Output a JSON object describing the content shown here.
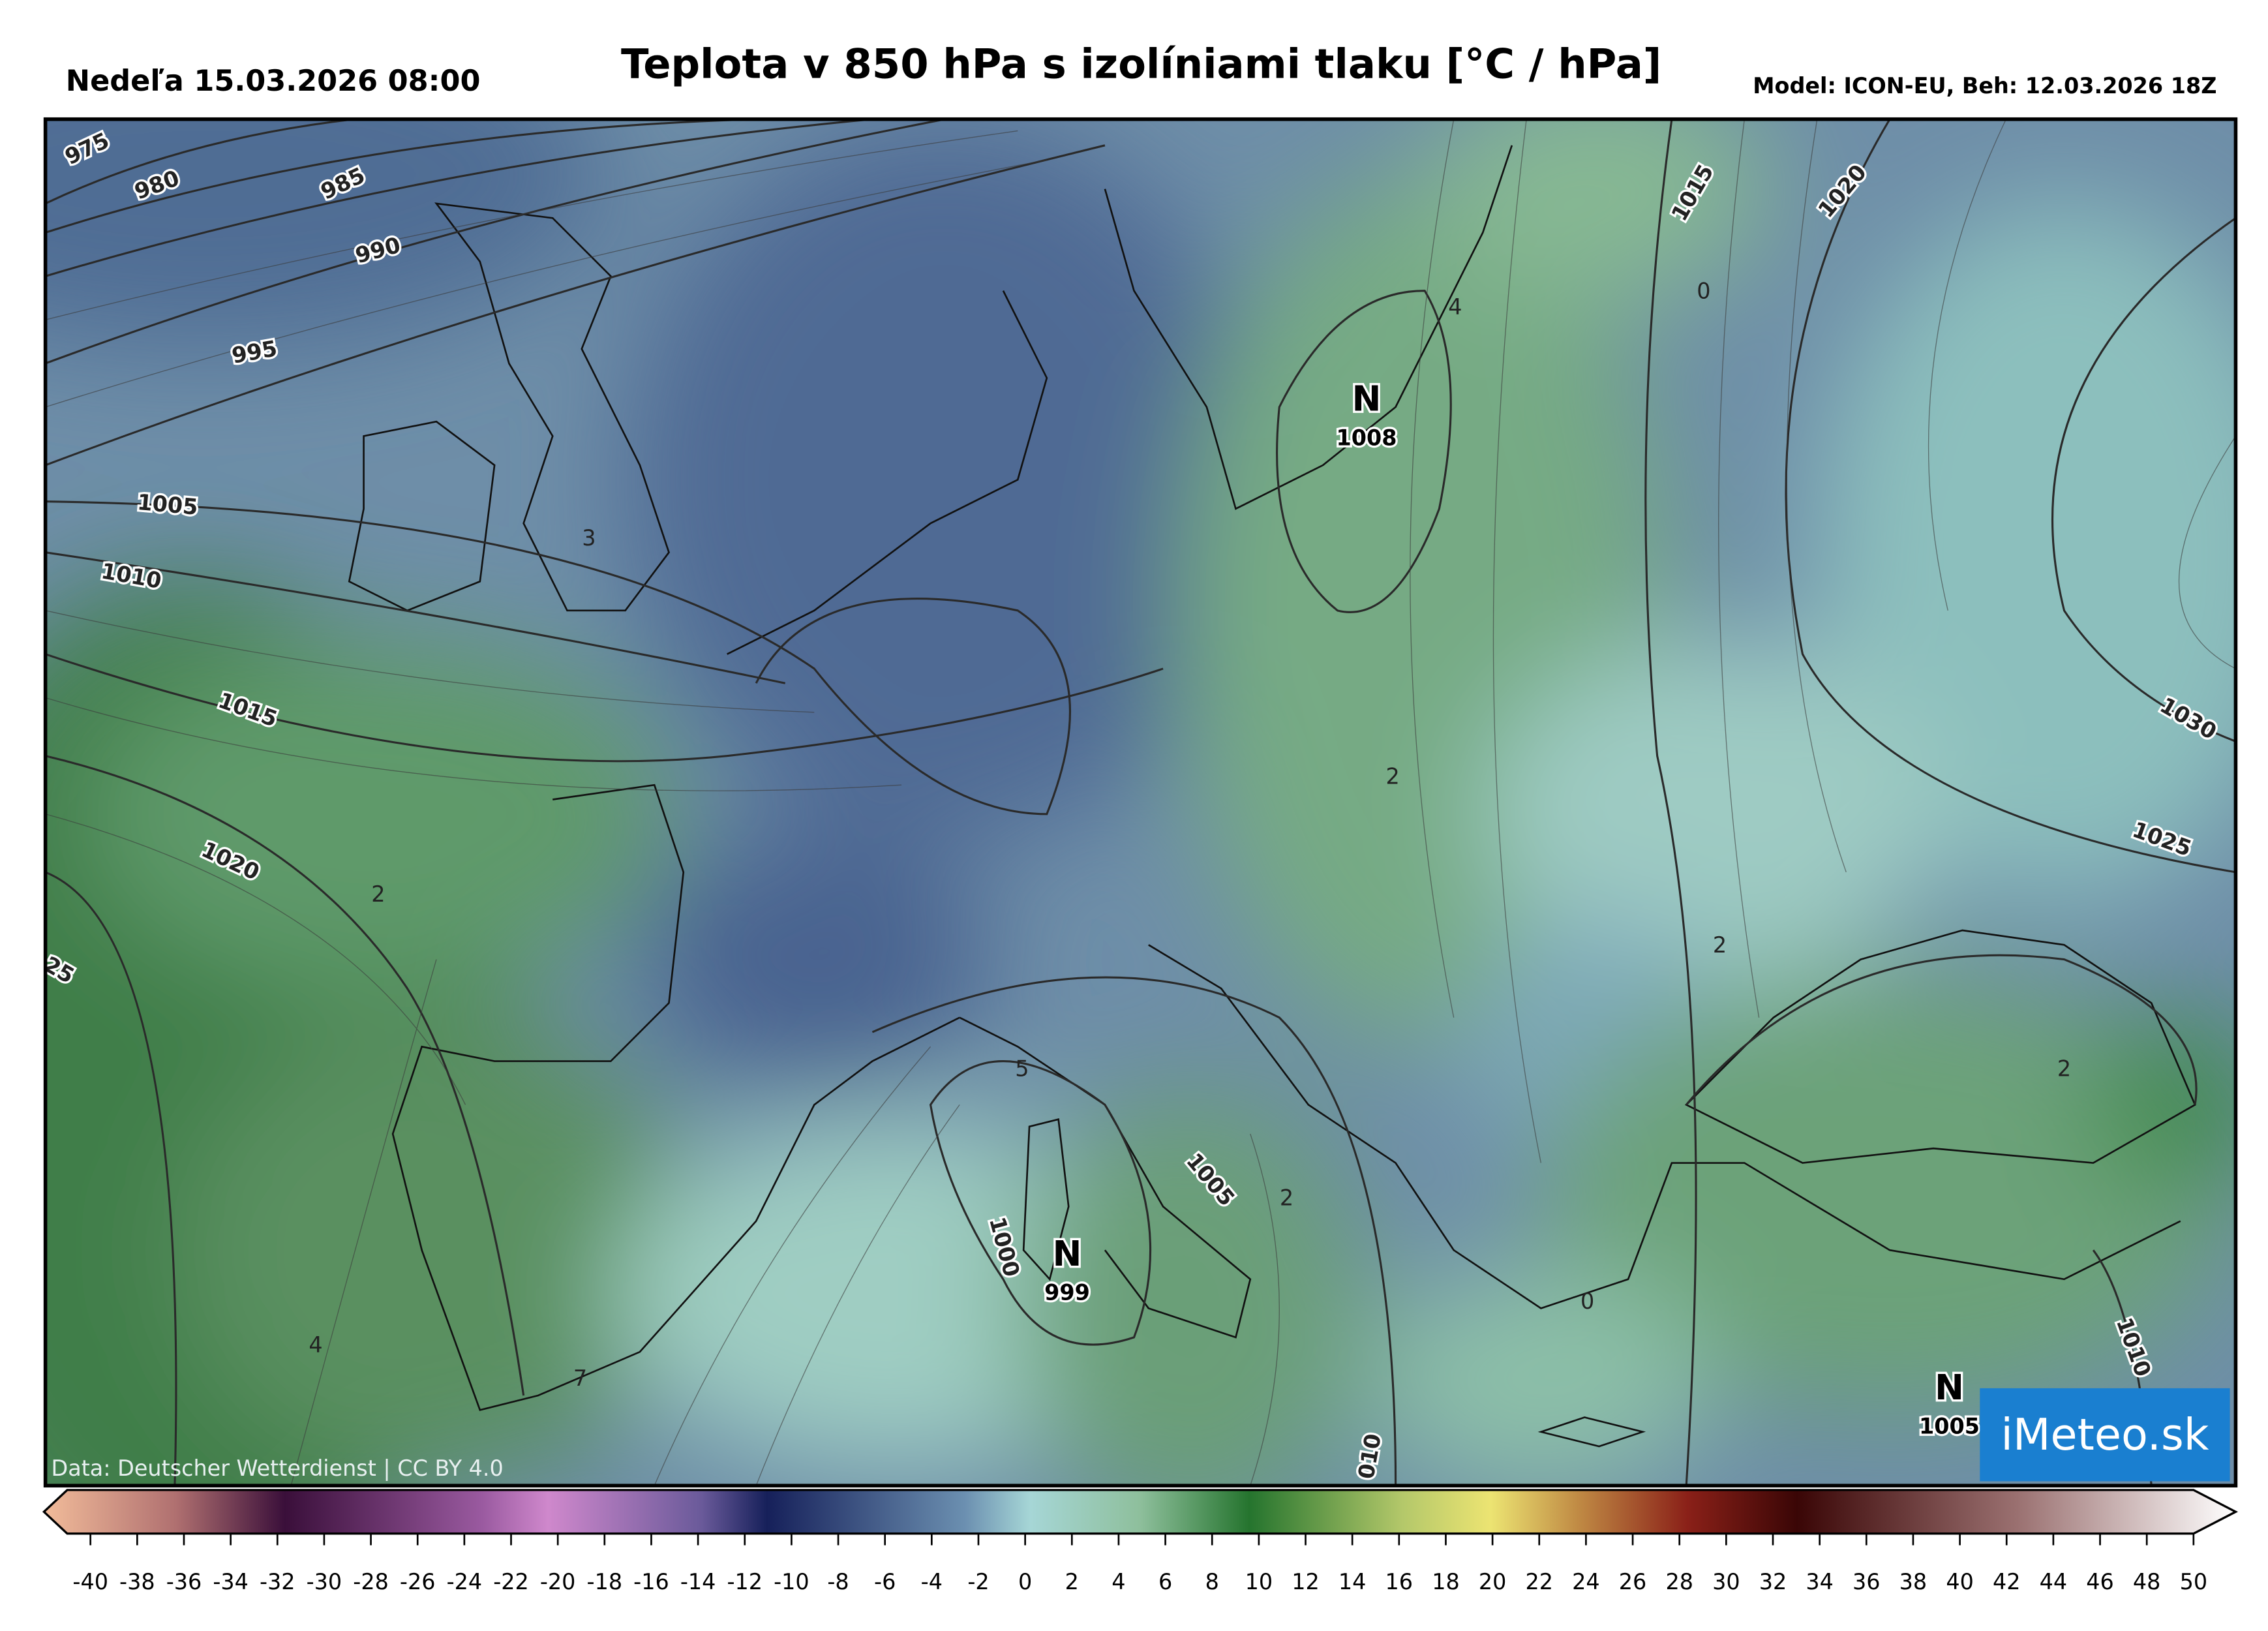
{
  "header": {
    "date": "Nedeľa 15.03.2026 08:00",
    "title": "Teplota v 850 hPa s izolíniami tlaku [°C / hPa]",
    "model": "Model: ICON-EU, Beh: 12.03.2026 18Z"
  },
  "map": {
    "isobar_labels": [
      "975",
      "980",
      "985",
      "990",
      "995",
      "1005",
      "1010",
      "1015",
      "1020",
      "25",
      "1015",
      "1020",
      "1030",
      "1025",
      "1005",
      "1000",
      "010",
      "1010"
    ],
    "temperature_labels": [
      "3",
      "2",
      "4",
      "7",
      "5",
      "4",
      "0",
      "2",
      "2",
      "2",
      "0",
      "2"
    ],
    "pressure_centers": [
      {
        "symbol": "N",
        "value": "1008"
      },
      {
        "symbol": "N",
        "value": "999"
      },
      {
        "symbol": "N",
        "value": "1005"
      }
    ],
    "credit": "Data: Deutscher Wetterdienst | CC BY 4.0",
    "logo": "iMeteo.sk"
  },
  "colorbar": {
    "ticks": [
      -40,
      -38,
      -36,
      -34,
      -32,
      -30,
      -28,
      -26,
      -24,
      -22,
      -20,
      -18,
      -16,
      -14,
      -12,
      -10,
      -8,
      -6,
      -4,
      -2,
      0,
      2,
      4,
      6,
      8,
      10,
      12,
      14,
      16,
      18,
      20,
      22,
      24,
      26,
      28,
      30,
      32,
      34,
      36,
      38,
      40,
      42,
      44,
      46,
      48,
      50
    ]
  }
}
